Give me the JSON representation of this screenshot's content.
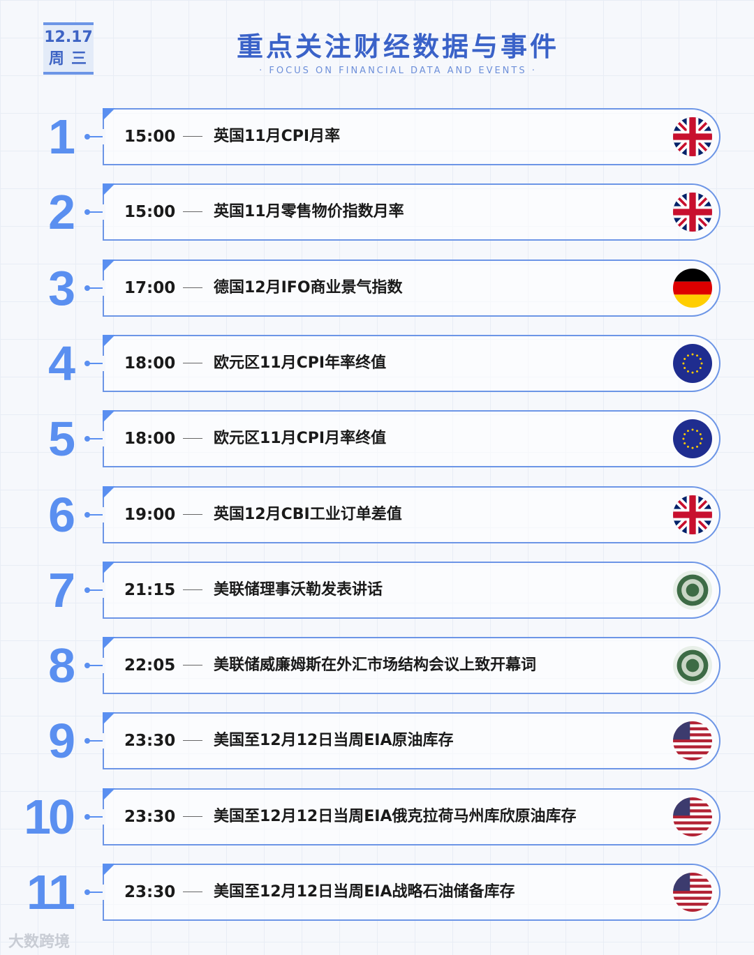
{
  "header": {
    "date": "12.17",
    "weekday": "周三",
    "title": "重点关注财经数据与事件",
    "subtitle": "· FOCUS ON FINANCIAL DATA AND EVENTS ·"
  },
  "events": [
    {
      "num": "1",
      "time": "15:00",
      "title": "英国11月CPI月率",
      "flag": "uk"
    },
    {
      "num": "2",
      "time": "15:00",
      "title": "英国11月零售物价指数月率",
      "flag": "uk"
    },
    {
      "num": "3",
      "time": "17:00",
      "title": "德国12月IFO商业景气指数",
      "flag": "de"
    },
    {
      "num": "4",
      "time": "18:00",
      "title": "欧元区11月CPI年率终值",
      "flag": "eu"
    },
    {
      "num": "5",
      "time": "18:00",
      "title": "欧元区11月CPI月率终值",
      "flag": "eu"
    },
    {
      "num": "6",
      "time": "19:00",
      "title": "英国12月CBI工业订单差值",
      "flag": "uk"
    },
    {
      "num": "7",
      "time": "21:15",
      "title": "美联储理事沃勒发表讲话",
      "flag": "fed"
    },
    {
      "num": "8",
      "time": "22:05",
      "title": "美联储威廉姆斯在外汇市场结构会议上致开幕词",
      "flag": "fed"
    },
    {
      "num": "9",
      "time": "23:30",
      "title": "美国至12月12日当周EIA原油库存",
      "flag": "us"
    },
    {
      "num": "10",
      "time": "23:30",
      "title": "美国至12月12日当周EIA俄克拉荷马州库欣原油库存",
      "flag": "us"
    },
    {
      "num": "11",
      "time": "23:30",
      "title": "美国至12月12日当周EIA战略石油储备库存",
      "flag": "us"
    }
  ],
  "watermark": "大数跨境",
  "colors": {
    "accent": "#5a8ff0",
    "title": "#3a62c8"
  }
}
